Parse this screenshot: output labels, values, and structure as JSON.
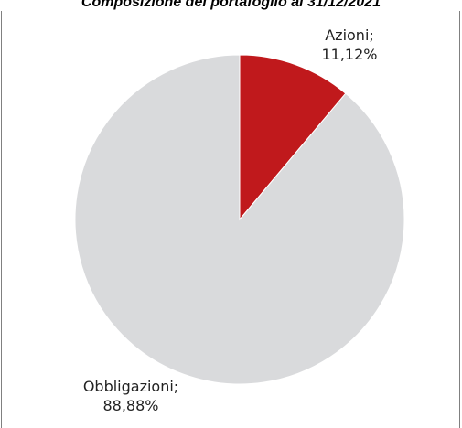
{
  "chart_data": {
    "type": "pie",
    "title": "Composizione del portafoglio al 31/12/2021",
    "categories": [
      "Azioni",
      "Obbligazioni"
    ],
    "values": [
      11.12,
      88.88
    ],
    "value_labels": [
      "11,12%",
      "88,88%"
    ],
    "colors": [
      "#c0191c",
      "#d9dadc"
    ],
    "legend": "none"
  }
}
